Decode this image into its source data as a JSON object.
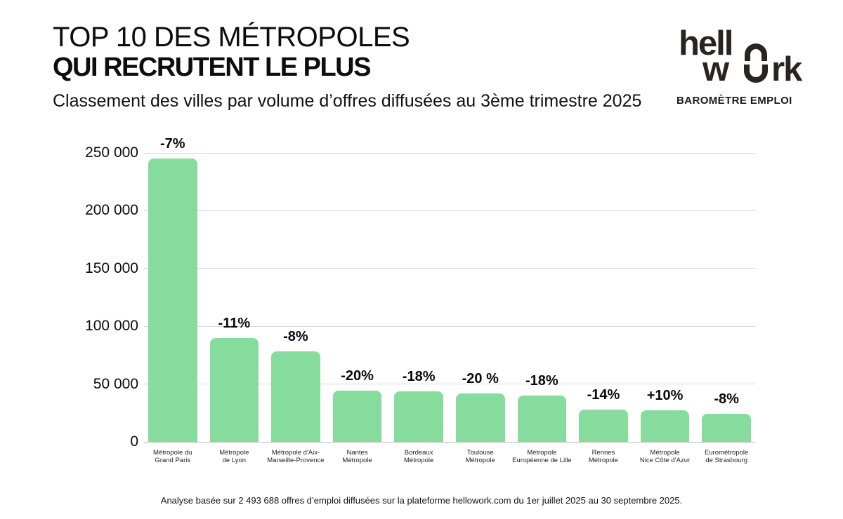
{
  "header": {
    "title_line1": "TOP 10 DES MÉTROPOLES",
    "title_line2": "QUI RECRUTENT LE PLUS",
    "subtitle": "Classement des villes par volume d’offres diffusées au 3ème trimestre 2025"
  },
  "logo": {
    "part_hell": "hell",
    "part_w": "w",
    "part_rk": "rk",
    "tagline": "BAROMÈTRE EMPLOI"
  },
  "chart_data": {
    "type": "bar",
    "title": "TOP 10 DES MÉTROPOLES QUI RECRUTENT LE PLUS",
    "subtitle": "Classement des villes par volume d’offres diffusées au 3ème trimestre 2025",
    "categories": [
      [
        "Métropole du",
        "Grand Paris"
      ],
      [
        "Métropole",
        "de Lyon"
      ],
      [
        "Métropole d'Aix-",
        "Marseille-Provence"
      ],
      [
        "Nantes",
        "Métropole"
      ],
      [
        "Bordeaux",
        "Métropole"
      ],
      [
        "Toulouse",
        "Métropole"
      ],
      [
        "Métropole",
        "Européenne de Lille"
      ],
      [
        "Rennes",
        "Métropole"
      ],
      [
        "Métropole",
        "Nice Côte d’Azur"
      ],
      [
        "Eurométropole",
        "de Strasbourg"
      ]
    ],
    "values": [
      245000,
      90000,
      78000,
      44000,
      43500,
      42000,
      40000,
      28000,
      27500,
      24000
    ],
    "bar_labels": [
      "-7%",
      "-11%",
      "-8%",
      "-20%",
      "-18%",
      "-20 %",
      "-18%",
      "-14%",
      "+10%",
      "-8%"
    ],
    "y_ticks": [
      0,
      50000,
      100000,
      150000,
      200000,
      250000
    ],
    "y_tick_labels": [
      "0",
      "50 000",
      "100 000",
      "150 000",
      "200 000",
      "250 000"
    ],
    "ylim": [
      0,
      250000
    ],
    "xlabel": "",
    "ylabel": "",
    "grid": true,
    "legend": false,
    "bar_color": "#85DC9D"
  },
  "footer": {
    "note": "Analyse basée sur 2 493 688 offres d’emploi diffusées sur la plateforme hellowork.com du 1er juillet 2025 au 30 septembre 2025."
  }
}
